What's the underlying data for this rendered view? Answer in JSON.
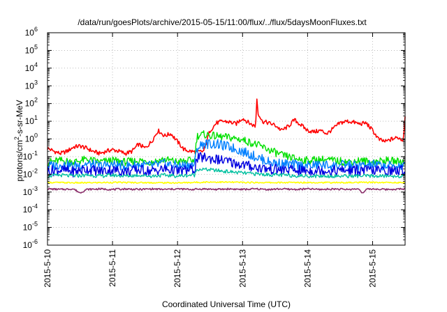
{
  "chart_data": {
    "type": "line",
    "title": "/data/run/goesPlots/archive/2015-05-15/11:00/flux/../flux/5daysMoonFluxes.txt",
    "xlabel": "Coordinated Universal Time (UTC)",
    "ylabel": {
      "base": "protons/cm",
      "sup": "2",
      "rest": "-s-sr-MeV"
    },
    "yscale": "log",
    "ylim_exp": [
      -6,
      6
    ],
    "ytick_base": "10",
    "ytick_exponents": [
      "-6",
      "-5",
      "-4",
      "-3",
      "-2",
      "-1",
      "0",
      "1",
      "2",
      "3",
      "4",
      "5",
      "6"
    ],
    "xlim_days": [
      0,
      5.5
    ],
    "xticks": [
      {
        "day": 0,
        "label": "2015-5-10"
      },
      {
        "day": 1,
        "label": "2015-5-11"
      },
      {
        "day": 2,
        "label": "2015-5-12"
      },
      {
        "day": 3,
        "label": "2015-5-13"
      },
      {
        "day": 4,
        "label": "2015-5-14"
      },
      {
        "day": 5,
        "label": "2015-5-15"
      }
    ],
    "grid": true,
    "series": [
      {
        "color": "#ff0000",
        "x": [
          0,
          0.1,
          0.2,
          0.3,
          0.4,
          0.5,
          0.6,
          0.7,
          0.8,
          0.9,
          1.0,
          1.1,
          1.2,
          1.3,
          1.4,
          1.5,
          1.6,
          1.7,
          1.8,
          1.9,
          2.0,
          2.1,
          2.2,
          2.3,
          2.4,
          2.5,
          2.6,
          2.7,
          2.8,
          2.9,
          3.0,
          3.1,
          3.2,
          3.22,
          3.24,
          3.3,
          3.4,
          3.5,
          3.6,
          3.7,
          3.8,
          3.9,
          4.0,
          4.1,
          4.2,
          4.3,
          4.4,
          4.5,
          4.6,
          4.7,
          4.8,
          4.9,
          5.0,
          5.1,
          5.2,
          5.3,
          5.4,
          5.47,
          5.5
        ],
        "y": [
          0.3,
          0.2,
          0.15,
          0.2,
          0.35,
          0.4,
          0.3,
          0.2,
          0.15,
          0.2,
          0.25,
          0.2,
          0.15,
          0.2,
          0.5,
          0.3,
          0.7,
          3,
          1.5,
          2,
          0.7,
          0.25,
          0.2,
          0.18,
          0.2,
          3,
          8,
          10,
          9,
          7,
          15,
          8,
          5,
          180,
          30,
          10,
          8,
          6,
          3,
          5,
          12,
          6,
          3,
          2.5,
          3,
          2,
          4,
          8,
          10,
          9,
          7,
          8,
          3,
          0.9,
          0.7,
          1.0,
          1.2,
          0.8,
          20
        ]
      },
      {
        "color": "#00e000",
        "x": [
          0,
          0.2,
          0.4,
          0.6,
          0.8,
          1.0,
          1.2,
          1.4,
          1.6,
          1.8,
          2.0,
          2.2,
          2.26,
          2.3,
          2.4,
          2.6,
          2.8,
          3.0,
          3.2,
          3.4,
          3.6,
          3.8,
          4.0,
          4.2,
          4.4,
          4.6,
          4.8,
          5.0,
          5.2,
          5.5
        ],
        "y": [
          0.05,
          0.06,
          0.05,
          0.07,
          0.05,
          0.06,
          0.05,
          0.06,
          0.05,
          0.07,
          0.05,
          0.06,
          0.06,
          1.5,
          1.8,
          1.4,
          1.2,
          0.9,
          0.5,
          0.25,
          0.12,
          0.08,
          0.06,
          0.07,
          0.06,
          0.05,
          0.06,
          0.05,
          0.06,
          0.05
        ]
      },
      {
        "color": "#0080ff",
        "x": [
          0,
          0.2,
          0.4,
          0.6,
          0.8,
          1.0,
          1.2,
          1.4,
          1.6,
          1.8,
          2.0,
          2.2,
          2.26,
          2.3,
          2.4,
          2.6,
          2.8,
          3.0,
          3.2,
          3.4,
          3.6,
          3.8,
          4.0,
          4.2,
          4.4,
          4.6,
          4.8,
          5.0,
          5.2,
          5.5
        ],
        "y": [
          0.03,
          0.035,
          0.03,
          0.04,
          0.03,
          0.035,
          0.03,
          0.035,
          0.03,
          0.04,
          0.03,
          0.035,
          0.035,
          0.3,
          0.55,
          0.5,
          0.35,
          0.2,
          0.1,
          0.05,
          0.04,
          0.035,
          0.03,
          0.035,
          0.03,
          0.035,
          0.03,
          0.035,
          0.03,
          0.03
        ]
      },
      {
        "color": "#0000e0",
        "x": [
          0,
          0.2,
          0.4,
          0.6,
          0.8,
          1.0,
          1.2,
          1.4,
          1.6,
          1.8,
          2.0,
          2.2,
          2.26,
          2.3,
          2.4,
          2.6,
          2.8,
          3.0,
          3.2,
          3.4,
          3.6,
          3.8,
          4.0,
          4.2,
          4.4,
          4.6,
          4.8,
          5.0,
          5.2,
          5.5
        ],
        "y": [
          0.015,
          0.018,
          0.014,
          0.02,
          0.015,
          0.018,
          0.014,
          0.018,
          0.015,
          0.02,
          0.015,
          0.018,
          0.018,
          0.08,
          0.09,
          0.07,
          0.05,
          0.035,
          0.025,
          0.02,
          0.018,
          0.017,
          0.016,
          0.017,
          0.016,
          0.017,
          0.016,
          0.017,
          0.016,
          0.016
        ]
      },
      {
        "color": "#00c0a0",
        "x": [
          0,
          0.2,
          0.4,
          0.6,
          0.8,
          1.0,
          1.2,
          1.4,
          1.6,
          1.8,
          2.0,
          2.2,
          2.26,
          2.3,
          2.5,
          2.8,
          3.0,
          3.3,
          3.6,
          4.0,
          4.4,
          4.8,
          5.2,
          5.5
        ],
        "y": [
          0.008,
          0.009,
          0.008,
          0.009,
          0.008,
          0.009,
          0.008,
          0.009,
          0.008,
          0.009,
          0.008,
          0.009,
          0.009,
          0.02,
          0.018,
          0.014,
          0.012,
          0.01,
          0.009,
          0.008,
          0.008,
          0.008,
          0.008,
          0.008
        ]
      },
      {
        "color": "#ffff00",
        "x": [
          0,
          0.5,
          1.0,
          1.5,
          2.0,
          2.5,
          3.0,
          3.5,
          4.0,
          4.5,
          5.0,
          5.5
        ],
        "y": [
          0.0035,
          0.0033,
          0.0035,
          0.0034,
          0.0033,
          0.0037,
          0.0035,
          0.0034,
          0.0035,
          0.0034,
          0.0035,
          0.0034
        ]
      },
      {
        "color": "#8b2f6b",
        "x": [
          0,
          0.2,
          0.4,
          0.5,
          0.6,
          0.8,
          1.0,
          1.2,
          1.4,
          1.6,
          1.8,
          2.0,
          2.2,
          2.4,
          2.6,
          2.8,
          3.0,
          3.2,
          3.4,
          3.6,
          3.8,
          4.0,
          4.2,
          4.4,
          4.6,
          4.8,
          4.85,
          4.9,
          5.0,
          5.2,
          5.5
        ],
        "y": [
          0.0015,
          0.0014,
          0.0015,
          0.0009,
          0.0014,
          0.0015,
          0.0014,
          0.0015,
          0.0014,
          0.0015,
          0.0014,
          0.0015,
          0.0014,
          0.0015,
          0.0014,
          0.0015,
          0.0014,
          0.0015,
          0.0014,
          0.0015,
          0.0014,
          0.0015,
          0.0014,
          0.0015,
          0.0014,
          0.0015,
          0.0008,
          0.0014,
          0.0015,
          0.0014,
          0.0015
        ]
      }
    ]
  }
}
